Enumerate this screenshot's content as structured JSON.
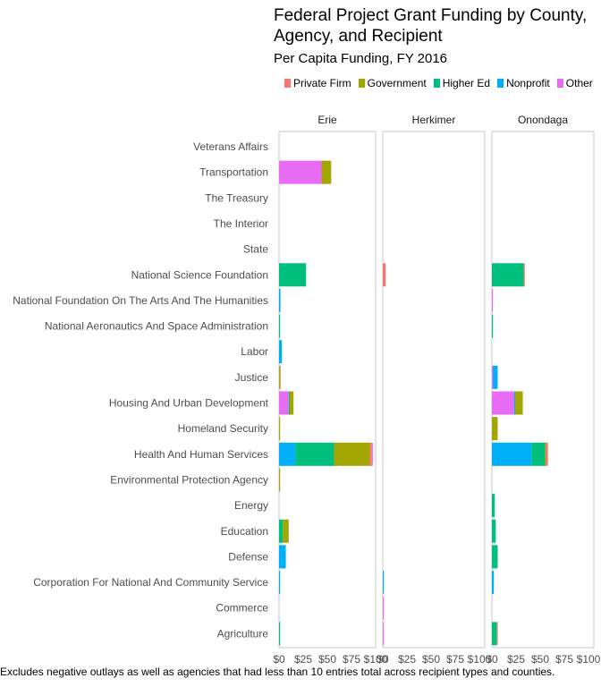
{
  "chart_data": {
    "type": "bar",
    "orientation": "horizontal",
    "stacked": true,
    "title": "Federal Project Grant Funding by County, Agency, and Recipient",
    "subtitle": "Per Capita Funding, FY 2016",
    "caption": "Excludes negative outlays as well as agencies that had less than 10 entries total across recipient types and counties.",
    "legend_position": "top-right",
    "series": [
      {
        "name": "Private Firm",
        "color": "#F8766D"
      },
      {
        "name": "Government",
        "color": "#A3A500"
      },
      {
        "name": "Higher Ed",
        "color": "#00BF7D"
      },
      {
        "name": "Nonprofit",
        "color": "#00B0F6"
      },
      {
        "name": "Other",
        "color": "#E76BF3"
      }
    ],
    "categories": [
      "Veterans Affairs",
      "Transportation",
      "The Treasury",
      "The Interior",
      "State",
      "National Science Foundation",
      "National Foundation On The Arts And The Humanities",
      "National Aeronautics And Space Administration",
      "Labor",
      "Justice",
      "Housing And Urban Development",
      "Homeland Security",
      "Health And Human Services",
      "Environmental Protection Agency",
      "Energy",
      "Education",
      "Defense",
      "Corporation For National And Community Service",
      "Commerce",
      "Agriculture"
    ],
    "xlim": [
      0,
      100
    ],
    "x_ticks": [
      "$0",
      "$25",
      "$50",
      "$75",
      "$100"
    ],
    "facets": [
      {
        "name": "Erie",
        "bars": [
          {
            "category": "Transportation",
            "segments": [
              {
                "series": "Other",
                "value": 44
              },
              {
                "series": "Government",
                "value": 10
              }
            ]
          },
          {
            "category": "National Science Foundation",
            "segments": [
              {
                "series": "Higher Ed",
                "value": 28
              }
            ]
          },
          {
            "category": "National Foundation On The Arts And The Humanities",
            "segments": [
              {
                "series": "Nonprofit",
                "value": 1.5
              }
            ]
          },
          {
            "category": "National Aeronautics And Space Administration",
            "segments": [
              {
                "series": "Higher Ed",
                "value": 1
              }
            ]
          },
          {
            "category": "Labor",
            "segments": [
              {
                "series": "Nonprofit",
                "value": 3
              }
            ]
          },
          {
            "category": "Justice",
            "segments": [
              {
                "series": "Private Firm",
                "value": 0.5
              },
              {
                "series": "Government",
                "value": 1
              }
            ]
          },
          {
            "category": "Housing And Urban Development",
            "segments": [
              {
                "series": "Other",
                "value": 10
              },
              {
                "series": "Higher Ed",
                "value": 1
              },
              {
                "series": "Government",
                "value": 4
              }
            ]
          },
          {
            "category": "Homeland Security",
            "segments": [
              {
                "series": "Government",
                "value": 1
              }
            ]
          },
          {
            "category": "Health And Human Services",
            "segments": [
              {
                "series": "Nonprofit",
                "value": 17
              },
              {
                "series": "Higher Ed",
                "value": 40
              },
              {
                "series": "Government",
                "value": 37
              },
              {
                "series": "Private Firm",
                "value": 2
              },
              {
                "series": "Other",
                "value": 1
              }
            ]
          },
          {
            "category": "Environmental Protection Agency",
            "segments": [
              {
                "series": "Government",
                "value": 1
              }
            ]
          },
          {
            "category": "Education",
            "segments": [
              {
                "series": "Higher Ed",
                "value": 4
              },
              {
                "series": "Government",
                "value": 6
              }
            ]
          },
          {
            "category": "Defense",
            "segments": [
              {
                "series": "Nonprofit",
                "value": 7
              }
            ]
          },
          {
            "category": "Corporation For National And Community Service",
            "segments": [
              {
                "series": "Nonprofit",
                "value": 1
              }
            ]
          },
          {
            "category": "Agriculture",
            "segments": [
              {
                "series": "Higher Ed",
                "value": 1
              }
            ]
          }
        ]
      },
      {
        "name": "Herkimer",
        "bars": [
          {
            "category": "National Science Foundation",
            "segments": [
              {
                "series": "Private Firm",
                "value": 3
              }
            ]
          },
          {
            "category": "Corporation For National And Community Service",
            "segments": [
              {
                "series": "Nonprofit",
                "value": 1
              }
            ]
          },
          {
            "category": "Commerce",
            "segments": [
              {
                "series": "Other",
                "value": 1
              }
            ]
          },
          {
            "category": "Agriculture",
            "segments": [
              {
                "series": "Other",
                "value": 1
              }
            ]
          }
        ]
      },
      {
        "name": "Onondaga",
        "bars": [
          {
            "category": "National Science Foundation",
            "segments": [
              {
                "series": "Higher Ed",
                "value": 33
              },
              {
                "series": "Private Firm",
                "value": 1
              }
            ]
          },
          {
            "category": "National Foundation On The Arts And The Humanities",
            "segments": [
              {
                "series": "Other",
                "value": 1
              }
            ]
          },
          {
            "category": "National Aeronautics And Space Administration",
            "segments": [
              {
                "series": "Higher Ed",
                "value": 1
              }
            ]
          },
          {
            "category": "Justice",
            "segments": [
              {
                "series": "Other",
                "value": 1
              },
              {
                "series": "Nonprofit",
                "value": 5
              }
            ]
          },
          {
            "category": "Housing And Urban Development",
            "segments": [
              {
                "series": "Other",
                "value": 23
              },
              {
                "series": "Nonprofit",
                "value": 1
              },
              {
                "series": "Government",
                "value": 8
              }
            ]
          },
          {
            "category": "Homeland Security",
            "segments": [
              {
                "series": "Government",
                "value": 6
              }
            ]
          },
          {
            "category": "Health And Human Services",
            "segments": [
              {
                "series": "Nonprofit",
                "value": 41
              },
              {
                "series": "Higher Ed",
                "value": 14
              },
              {
                "series": "Government",
                "value": 1
              },
              {
                "series": "Private Firm",
                "value": 2
              }
            ]
          },
          {
            "category": "Energy",
            "segments": [
              {
                "series": "Higher Ed",
                "value": 3
              }
            ]
          },
          {
            "category": "Education",
            "segments": [
              {
                "series": "Higher Ed",
                "value": 4
              }
            ]
          },
          {
            "category": "Defense",
            "segments": [
              {
                "series": "Higher Ed",
                "value": 6
              }
            ]
          },
          {
            "category": "Corporation For National And Community Service",
            "segments": [
              {
                "series": "Nonprofit",
                "value": 2
              }
            ]
          },
          {
            "category": "Agriculture",
            "segments": [
              {
                "series": "Higher Ed",
                "value": 5
              },
              {
                "series": "Private Firm",
                "value": 1
              }
            ]
          }
        ]
      }
    ]
  }
}
